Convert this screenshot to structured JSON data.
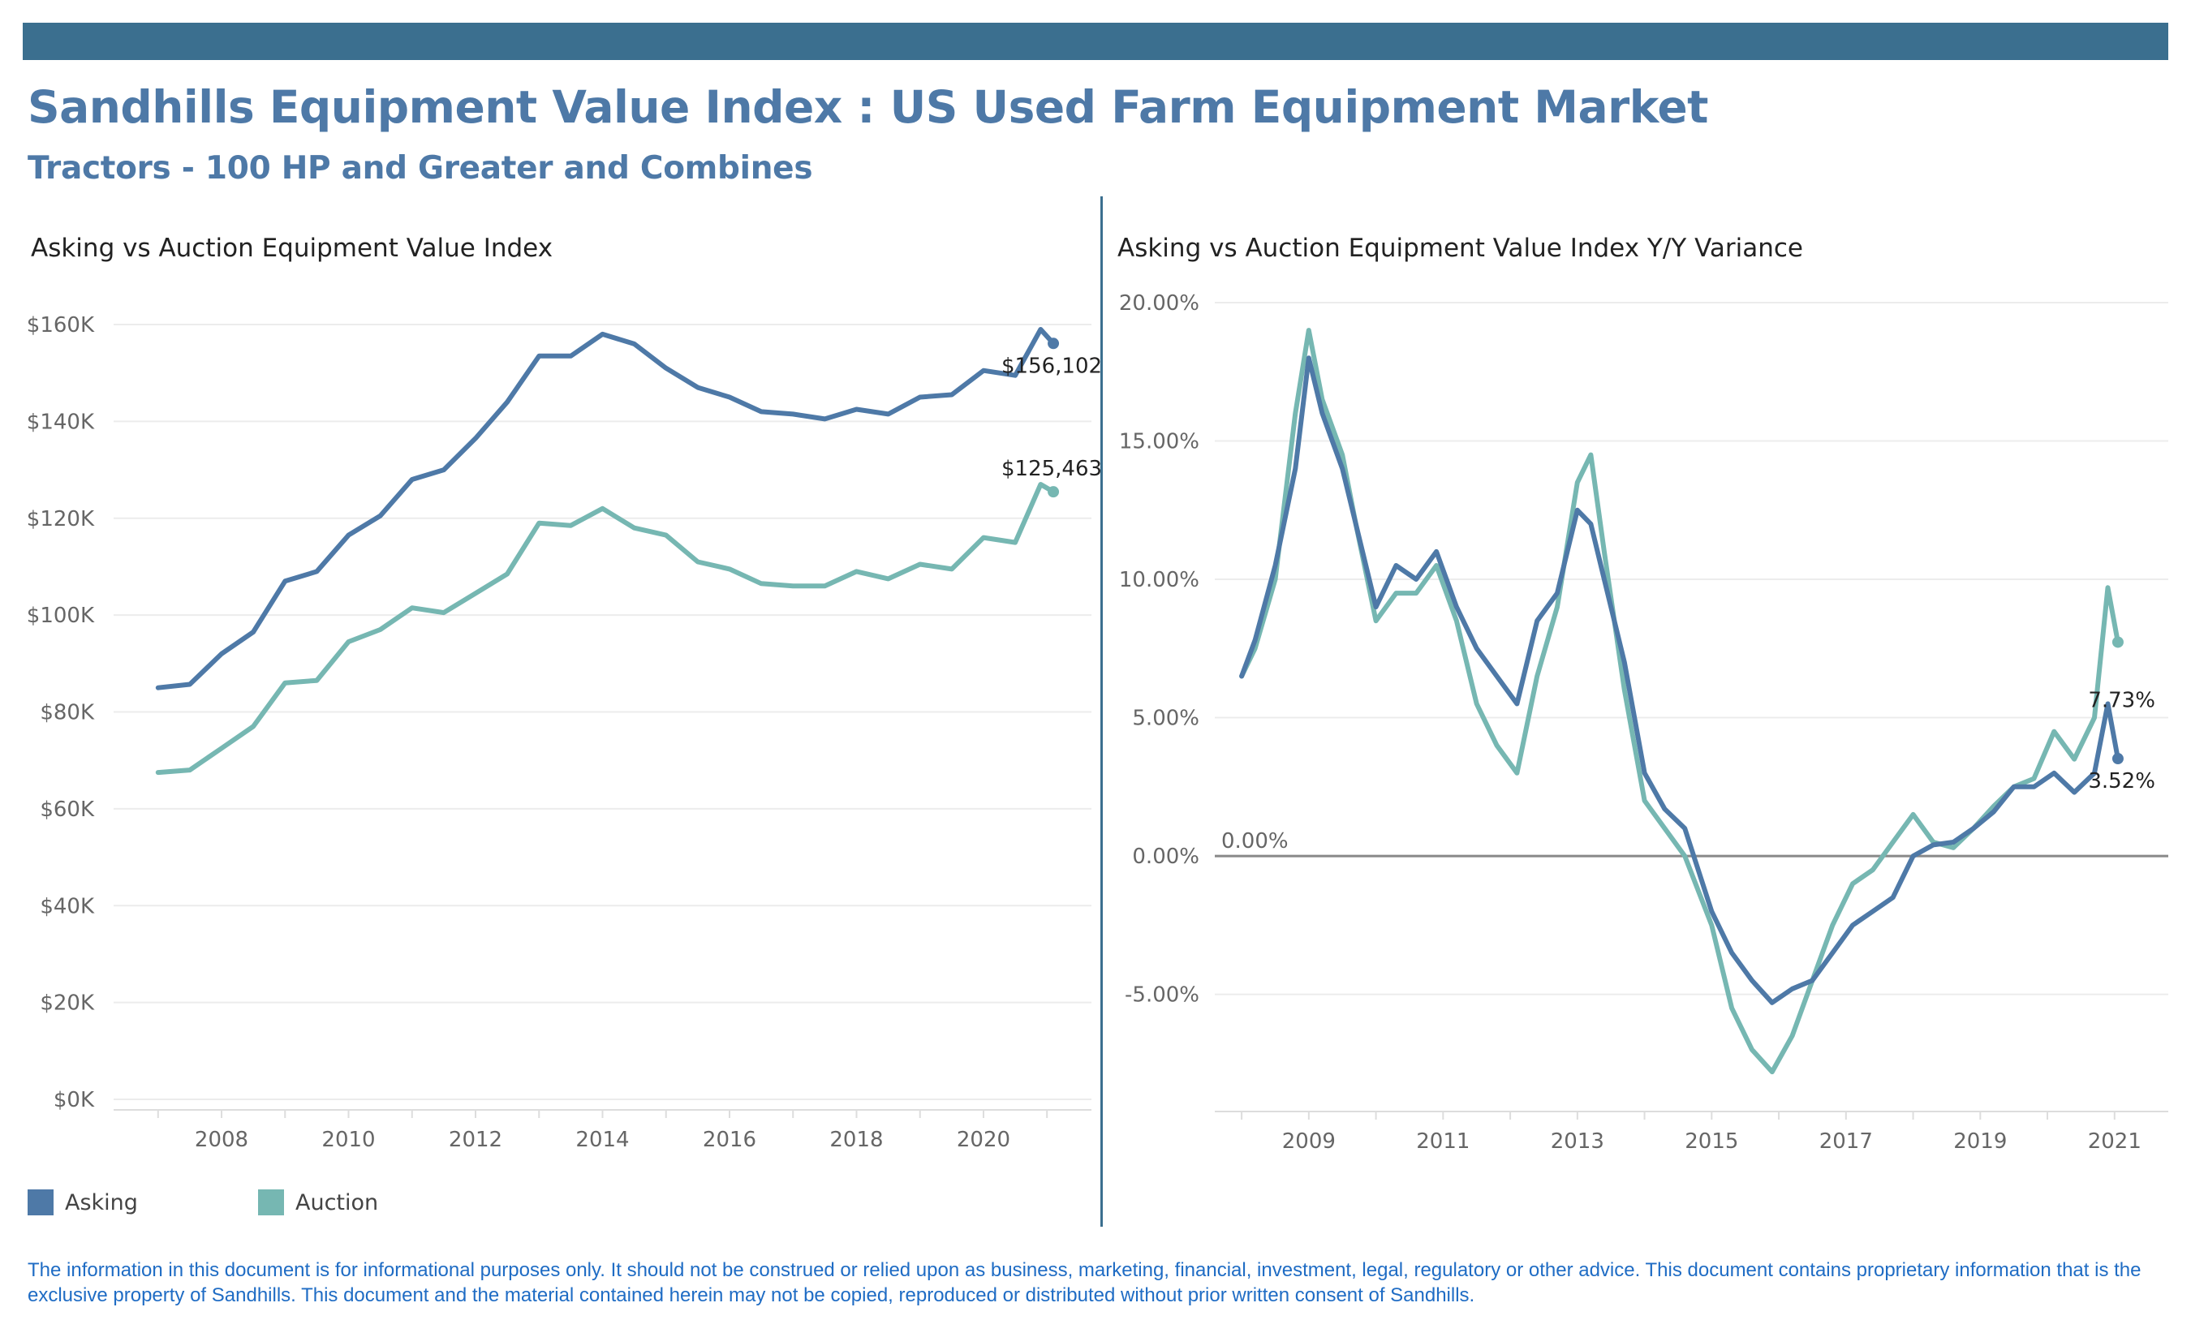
{
  "title": "Sandhills Equipment Value Index : US Used Farm Equipment Market",
  "subtitle": "Tractors - 100 HP and Greater and Combines",
  "colors": {
    "asking": "#4e79a7",
    "auction": "#76b7b2",
    "banner": "#3b6f8f",
    "title": "#4e79a7",
    "disclaimer": "#1f6cc4"
  },
  "legend": [
    {
      "label": "Asking",
      "color": "#4e79a7"
    },
    {
      "label": "Auction",
      "color": "#76b7b2"
    }
  ],
  "disclaimer": "The information in this document is for informational purposes only.  It should not be construed or relied upon as business, marketing, financial, investment, legal, regulatory or other advice. This document contains proprietary information that is the exclusive property of Sandhills. This document and the material contained herein may not be copied, reproduced or distributed without prior written consent of Sandhills.",
  "chart_data": [
    {
      "type": "line",
      "title": "Asking vs Auction Equipment Value Index",
      "xlim": [
        2006.3,
        2021.7
      ],
      "ylim": [
        0,
        160000
      ],
      "x_ticks": [
        "2008",
        "2010",
        "2012",
        "2014",
        "2016",
        "2018",
        "2020"
      ],
      "x_tick_values": [
        2008,
        2010,
        2012,
        2014,
        2016,
        2018,
        2020
      ],
      "y_ticks": [
        "$0K",
        "$20K",
        "$40K",
        "$60K",
        "$80K",
        "$100K",
        "$120K",
        "$140K",
        "$160K"
      ],
      "y_tick_values": [
        0,
        20000,
        40000,
        60000,
        80000,
        100000,
        120000,
        140000,
        160000
      ],
      "grid": true,
      "series": [
        {
          "name": "Asking",
          "color": "#4e79a7",
          "end_label": "$156,102",
          "x": [
            2007.0,
            2007.5,
            2008.0,
            2008.5,
            2009.0,
            2009.5,
            2010.0,
            2010.5,
            2011.0,
            2011.5,
            2012.0,
            2012.5,
            2013.0,
            2013.5,
            2014.0,
            2014.5,
            2015.0,
            2015.5,
            2016.0,
            2016.5,
            2017.0,
            2017.5,
            2018.0,
            2018.5,
            2019.0,
            2019.5,
            2020.0,
            2020.5,
            2020.9,
            2021.1
          ],
          "y": [
            85000,
            85700,
            92000,
            96500,
            107000,
            109000,
            116500,
            120500,
            128000,
            130000,
            136500,
            144000,
            153500,
            153500,
            158000,
            156000,
            151000,
            147000,
            145000,
            142000,
            141500,
            140500,
            142500,
            141500,
            145000,
            145500,
            150500,
            149500,
            159000,
            156102
          ]
        },
        {
          "name": "Auction",
          "color": "#76b7b2",
          "end_label": "$125,463",
          "x": [
            2007.0,
            2007.5,
            2008.0,
            2008.5,
            2009.0,
            2009.5,
            2010.0,
            2010.5,
            2011.0,
            2011.5,
            2012.0,
            2012.5,
            2013.0,
            2013.5,
            2014.0,
            2014.5,
            2015.0,
            2015.5,
            2016.0,
            2016.5,
            2017.0,
            2017.5,
            2018.0,
            2018.5,
            2019.0,
            2019.5,
            2020.0,
            2020.5,
            2020.9,
            2021.1
          ],
          "y": [
            67500,
            68000,
            72500,
            77000,
            86000,
            86500,
            94500,
            97000,
            101500,
            100500,
            104500,
            108500,
            119000,
            118500,
            122000,
            118000,
            116500,
            111000,
            109500,
            106500,
            106000,
            106000,
            109000,
            107500,
            110500,
            109500,
            116000,
            115000,
            127000,
            125463
          ]
        }
      ]
    },
    {
      "type": "line",
      "title": "Asking vs Auction Equipment Value Index Y/Y Variance",
      "xlim": [
        2007.6,
        2021.8
      ],
      "ylim": [
        -9,
        20
      ],
      "x_ticks": [
        "2009",
        "2011",
        "2013",
        "2015",
        "2017",
        "2019",
        "2021"
      ],
      "x_tick_values": [
        2009,
        2011,
        2013,
        2015,
        2017,
        2019,
        2021
      ],
      "y_ticks": [
        "-5.00%",
        "0.00%",
        "5.00%",
        "10.00%",
        "15.00%",
        "20.00%"
      ],
      "y_tick_values": [
        -5,
        0,
        5,
        10,
        15,
        20
      ],
      "reference_line": {
        "value": 0,
        "label": "0.00%"
      },
      "grid": true,
      "series": [
        {
          "name": "Asking",
          "color": "#4e79a7",
          "end_label": "3.52%",
          "x": [
            2008.0,
            2008.2,
            2008.5,
            2008.8,
            2009.0,
            2009.2,
            2009.5,
            2009.7,
            2010.0,
            2010.3,
            2010.6,
            2010.9,
            2011.2,
            2011.5,
            2011.8,
            2012.1,
            2012.4,
            2012.7,
            2013.0,
            2013.2,
            2013.4,
            2013.7,
            2014.0,
            2014.3,
            2014.6,
            2015.0,
            2015.3,
            2015.6,
            2015.9,
            2016.2,
            2016.5,
            2016.8,
            2017.1,
            2017.4,
            2017.7,
            2018.0,
            2018.3,
            2018.6,
            2018.9,
            2019.2,
            2019.5,
            2019.8,
            2020.1,
            2020.4,
            2020.7,
            2020.9,
            2021.05
          ],
          "y": [
            6.5,
            7.8,
            10.5,
            14.0,
            18.0,
            16.0,
            14.0,
            12.0,
            9.0,
            10.5,
            10.0,
            11.0,
            9.0,
            7.5,
            6.5,
            5.5,
            8.5,
            9.5,
            12.5,
            12.0,
            10.0,
            7.0,
            3.0,
            1.7,
            1.0,
            -2.0,
            -3.5,
            -4.5,
            -5.3,
            -4.8,
            -4.5,
            -3.5,
            -2.5,
            -2.0,
            -1.5,
            0.0,
            0.4,
            0.5,
            1.0,
            1.6,
            2.5,
            2.5,
            3.0,
            2.3,
            3.0,
            5.5,
            3.52
          ]
        },
        {
          "name": "Auction",
          "color": "#76b7b2",
          "end_label": "7.73%",
          "x": [
            2008.0,
            2008.2,
            2008.5,
            2008.8,
            2009.0,
            2009.2,
            2009.5,
            2009.7,
            2010.0,
            2010.3,
            2010.6,
            2010.9,
            2011.2,
            2011.5,
            2011.8,
            2012.1,
            2012.4,
            2012.7,
            2013.0,
            2013.2,
            2013.4,
            2013.7,
            2014.0,
            2014.3,
            2014.6,
            2015.0,
            2015.3,
            2015.6,
            2015.9,
            2016.2,
            2016.5,
            2016.8,
            2017.1,
            2017.4,
            2017.7,
            2018.0,
            2018.3,
            2018.6,
            2018.9,
            2019.2,
            2019.5,
            2019.8,
            2020.1,
            2020.4,
            2020.7,
            2020.9,
            2021.05
          ],
          "y": [
            6.5,
            7.5,
            10.0,
            16.0,
            19.0,
            16.5,
            14.5,
            12.0,
            8.5,
            9.5,
            9.5,
            10.5,
            8.5,
            5.5,
            4.0,
            3.0,
            6.5,
            9.0,
            13.5,
            14.5,
            11.0,
            6.0,
            2.0,
            1.0,
            0.0,
            -2.5,
            -5.5,
            -7.0,
            -7.8,
            -6.5,
            -4.5,
            -2.5,
            -1.0,
            -0.5,
            0.5,
            1.5,
            0.5,
            0.3,
            1.0,
            1.8,
            2.5,
            2.8,
            4.5,
            3.5,
            5.0,
            9.7,
            7.73
          ]
        }
      ]
    }
  ]
}
